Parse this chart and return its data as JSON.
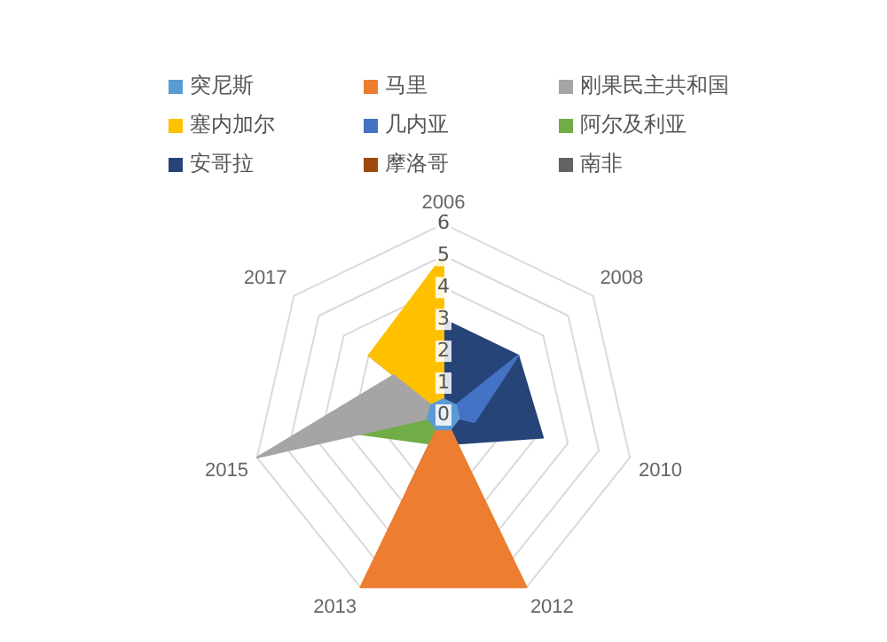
{
  "chart_data": {
    "type": "radar",
    "categories": [
      "2006",
      "2008",
      "2010",
      "2012",
      "2013",
      "2015",
      "2017"
    ],
    "ylim": [
      0,
      6
    ],
    "yticks": [
      0,
      1,
      2,
      3,
      4,
      5,
      6
    ],
    "grid": true,
    "legend": "top",
    "marker": "none",
    "series": [
      {
        "name": "突尼斯",
        "color": "#5b9bd5",
        "values": [
          0.5,
          0.5,
          0.5,
          0.5,
          0.5,
          0.5,
          0.5
        ]
      },
      {
        "name": "马里",
        "color": "#ed7d31",
        "values": [
          0,
          0,
          0,
          6,
          6,
          0,
          0
        ]
      },
      {
        "name": "刚果民主共和国",
        "color": "#a5a5a5",
        "values": [
          0,
          0,
          0,
          0,
          0,
          6,
          2
        ]
      },
      {
        "name": "塞内加尔",
        "color": "#ffc000",
        "values": [
          5,
          0,
          0,
          0,
          0,
          0,
          3
        ]
      },
      {
        "name": "几内亚",
        "color": "#4472c4",
        "values": [
          0,
          3,
          1,
          0,
          0,
          0,
          0
        ]
      },
      {
        "name": "阿尔及利亚",
        "color": "#70ad47",
        "values": [
          0,
          0,
          0,
          0,
          1,
          2.7,
          0
        ]
      },
      {
        "name": "安哥拉",
        "color": "#264478",
        "values": [
          3,
          3,
          3.2,
          1,
          0,
          0,
          0
        ]
      },
      {
        "name": "摩洛哥",
        "color": "#9e480e",
        "values": [
          1,
          0,
          0,
          1,
          1,
          0,
          1
        ]
      },
      {
        "name": "南非",
        "color": "#636363",
        "values": [
          0,
          0,
          0,
          0,
          2.6,
          0,
          3
        ]
      }
    ]
  }
}
